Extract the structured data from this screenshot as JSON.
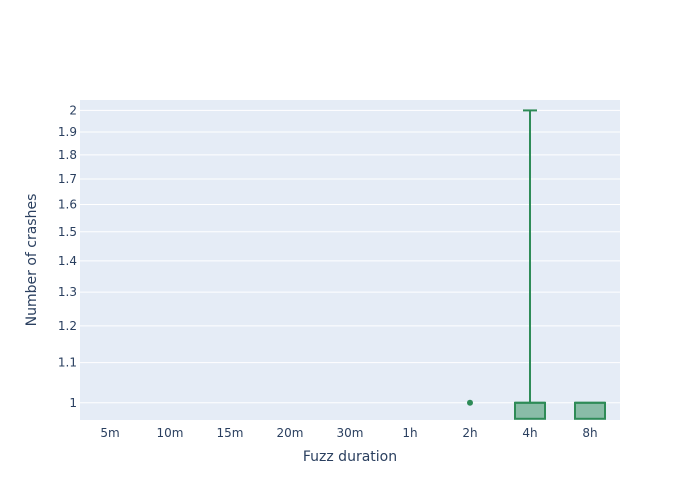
{
  "chart_data": {
    "type": "box",
    "categories": [
      "5m",
      "10m",
      "15m",
      "20m",
      "30m",
      "1h",
      "2h",
      "4h",
      "8h"
    ],
    "xlabel": "Fuzz duration",
    "ylabel": "Number of crashes",
    "yscale": "log",
    "yrange": [
      0.96,
      2.05
    ],
    "yticks": [
      1,
      1.1,
      1.2,
      1.3,
      1.4,
      1.5,
      1.6,
      1.7,
      1.8,
      1.9,
      2
    ],
    "grid": true,
    "color": "#2e8b57",
    "fill": "rgba(46,139,87,0.5)",
    "plot_bg": "#e5ecf6",
    "boxes": [
      {
        "category": "2h",
        "outliers": [
          1
        ]
      },
      {
        "category": "4h",
        "q1": 1,
        "median": 1,
        "q3": 1,
        "lowerfence": 1,
        "upperfence": 2
      },
      {
        "category": "8h",
        "q1": 1,
        "median": 1,
        "q3": 1,
        "lowerfence": 1,
        "upperfence": 1
      }
    ]
  }
}
